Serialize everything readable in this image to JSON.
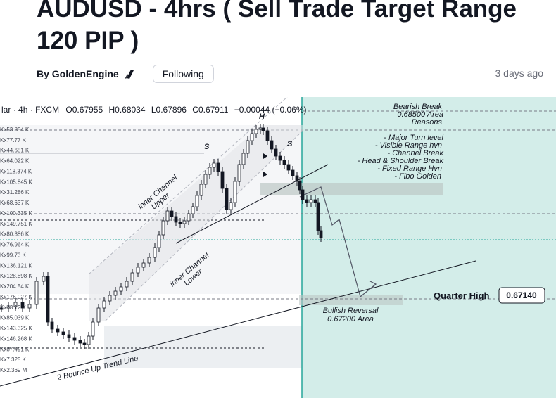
{
  "article": {
    "title": "AUDUSD - 4hrs ( Sell Trade Target Range 120 PIP )",
    "by_label": "By",
    "author": "GoldenEngine",
    "follow_label": "Following",
    "time_ago": "3 days ago"
  },
  "chart_data": {
    "type": "candlestick",
    "symbol_prefix": "lar",
    "interval": "4h",
    "exchange": "FXCM",
    "ohlc": {
      "open": "O0.67955",
      "high": "H0.68034",
      "low": "L0.67896",
      "close": "C0.67911",
      "change": "−0.00044 (−0.06%)"
    },
    "reference_price": {
      "label": "Quarter High",
      "value": "0.67140"
    },
    "annotations": [
      {
        "text": "Bearish Break",
        "kind": "note"
      },
      {
        "text": "0.68500 Area",
        "kind": "note"
      },
      {
        "text": "Reasons",
        "kind": "note"
      },
      {
        "text": "- Major Turn level",
        "kind": "note"
      },
      {
        "text": "- Visible Range hvn",
        "kind": "note"
      },
      {
        "text": "- Channel Break",
        "kind": "note"
      },
      {
        "text": "- Head & Shoulder Break",
        "kind": "note"
      },
      {
        "text": "- Fixed Range Hvn",
        "kind": "note"
      },
      {
        "text": "- Fibo Golden",
        "kind": "note"
      },
      {
        "text": "H",
        "kind": "pattern"
      },
      {
        "text": "S",
        "kind": "pattern"
      },
      {
        "text": "S",
        "kind": "pattern"
      },
      {
        "text": "inner Channel",
        "kind": "channel"
      },
      {
        "text": "Upper",
        "kind": "channel"
      },
      {
        "text": "inner Channel",
        "kind": "channel"
      },
      {
        "text": "Lower",
        "kind": "channel"
      },
      {
        "text": "Bullish Reversal",
        "kind": "note"
      },
      {
        "text": "0.67200 Area",
        "kind": "note"
      },
      {
        "text": "2 Bounce Up Trend Line",
        "kind": "trend"
      }
    ],
    "volume_profile_labels": [
      "Kx53.854 K",
      "Kx77.77 K",
      "Kx44.681 K",
      "Kx64.022 K",
      "Kx118.374 K",
      "Kx105.845 K",
      "Kx31.286 K",
      "Kx68.637 K",
      "Kx100.335 K",
      "Kx149.751 K",
      "Kx80.386 K",
      "Kx76.964 K",
      "Kx99.73 K",
      "Kx136.121 K",
      "Kx128.898 K",
      "Kx204.54 K",
      "Kx176.027 K",
      "Kx73.12 K",
      "Kx85.039 K",
      "Kx143.325 K",
      "Kx146.268 K",
      "Kx87.491 K",
      "Kx7.325 K",
      "Kx2.369 M"
    ],
    "colors": {
      "up": "#131722",
      "down": "#131722",
      "zone": "#b2dfdb",
      "zone_edge": "#26a69a",
      "channel": "#b2b5be"
    }
  }
}
